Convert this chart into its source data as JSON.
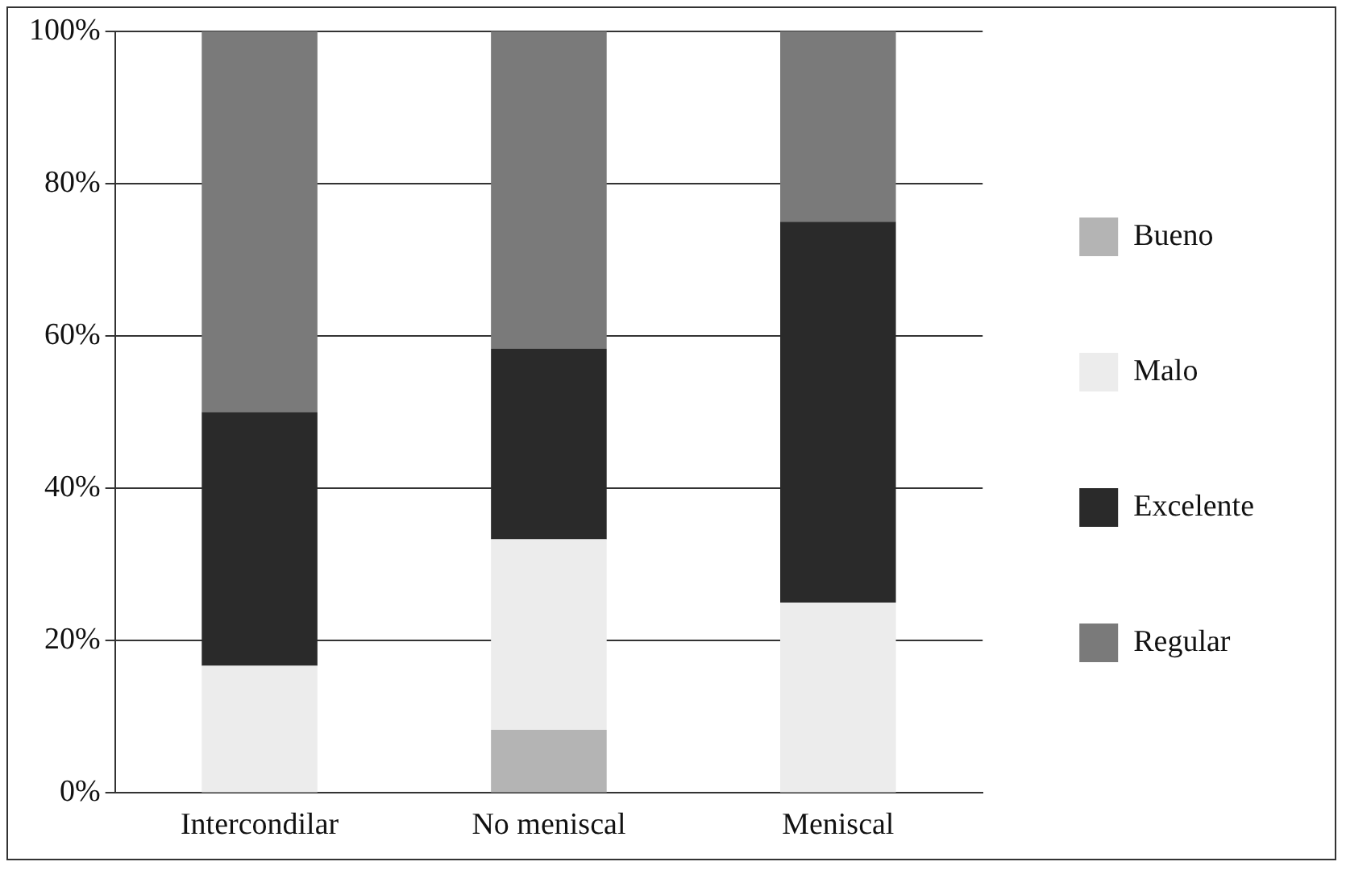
{
  "chart_data": {
    "type": "bar",
    "stacked": true,
    "categories": [
      "Intercondilar",
      "No meniscal",
      "Meniscal"
    ],
    "series": [
      {
        "name": "Bueno",
        "color": "#b4b4b4",
        "values": [
          0,
          8.3,
          0
        ]
      },
      {
        "name": "Malo",
        "color": "#ececec",
        "values": [
          16.7,
          25,
          25
        ]
      },
      {
        "name": "Excelente",
        "color": "#2a2a2a",
        "values": [
          33.3,
          25,
          50
        ]
      },
      {
        "name": "Regular",
        "color": "#7a7a7a",
        "values": [
          50,
          41.7,
          25
        ]
      }
    ],
    "ylim": [
      0,
      100
    ],
    "yticks": [
      {
        "value": 0,
        "label": "0%"
      },
      {
        "value": 20,
        "label": "20%"
      },
      {
        "value": 40,
        "label": "40%"
      },
      {
        "value": 60,
        "label": "60%"
      },
      {
        "value": 80,
        "label": "80%"
      },
      {
        "value": 100,
        "label": "100%"
      }
    ],
    "grid": "y",
    "legend": "right"
  }
}
